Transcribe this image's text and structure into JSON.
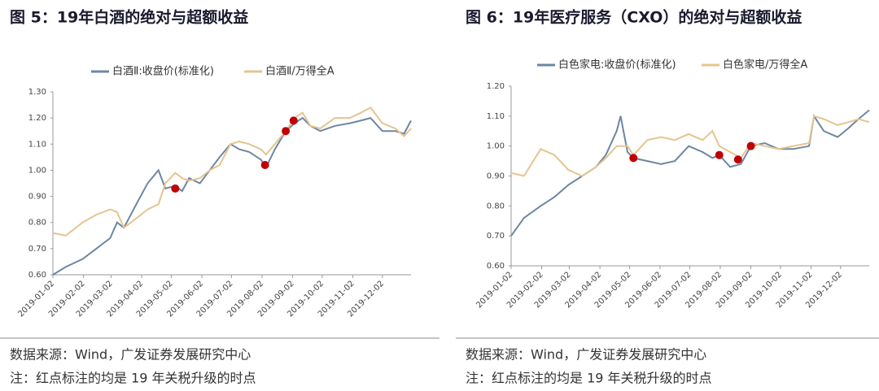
{
  "chart_data": [
    {
      "type": "line",
      "title": "图  5：19年白酒的绝对与超额收益",
      "x": [
        "2019-01-02",
        "2019-01-15",
        "2019-02-01",
        "2019-02-15",
        "2019-03-01",
        "2019-03-08",
        "2019-03-15",
        "2019-03-29",
        "2019-04-08",
        "2019-04-19",
        "2019-04-26",
        "2019-05-06",
        "2019-05-13",
        "2019-05-20",
        "2019-05-31",
        "2019-06-10",
        "2019-06-20",
        "2019-07-01",
        "2019-07-10",
        "2019-07-20",
        "2019-08-01",
        "2019-08-06",
        "2019-08-15",
        "2019-08-26",
        "2019-09-04",
        "2019-09-12",
        "2019-09-20",
        "2019-09-30",
        "2019-10-15",
        "2019-10-30",
        "2019-11-10",
        "2019-11-20",
        "2019-12-02",
        "2019-12-15",
        "2019-12-24",
        "2019-12-31"
      ],
      "series": [
        {
          "name": "白酒Ⅱ:收盘价(标准化)",
          "color": "#6d87a3",
          "values": [
            0.6,
            0.63,
            0.66,
            0.7,
            0.74,
            0.8,
            0.78,
            0.88,
            0.95,
            1.0,
            0.93,
            0.94,
            0.92,
            0.97,
            0.95,
            1.0,
            1.05,
            1.1,
            1.08,
            1.07,
            1.04,
            1.01,
            1.08,
            1.15,
            1.18,
            1.2,
            1.17,
            1.15,
            1.17,
            1.18,
            1.19,
            1.2,
            1.15,
            1.15,
            1.14,
            1.19
          ]
        },
        {
          "name": "白酒Ⅱ/万得全A",
          "color": "#e6c48f",
          "values": [
            0.76,
            0.75,
            0.8,
            0.83,
            0.85,
            0.84,
            0.78,
            0.82,
            0.85,
            0.87,
            0.95,
            0.99,
            0.97,
            0.96,
            0.97,
            1.0,
            1.02,
            1.1,
            1.11,
            1.1,
            1.08,
            1.06,
            1.1,
            1.15,
            1.2,
            1.22,
            1.17,
            1.16,
            1.2,
            1.2,
            1.22,
            1.24,
            1.18,
            1.16,
            1.13,
            1.16
          ]
        }
      ],
      "highlights": {
        "color": "#c00000",
        "x": [
          "2019-05-06",
          "2019-08-05",
          "2019-08-26",
          "2019-09-03"
        ],
        "values": [
          0.93,
          1.02,
          1.15,
          1.19
        ]
      },
      "xlim": [
        "2019-01-02",
        "2019-12-31"
      ],
      "xticks": [
        "2019-01-02",
        "2019-02-02",
        "2019-03-02",
        "2019-04-02",
        "2019-05-02",
        "2019-06-02",
        "2019-07-02",
        "2019-08-02",
        "2019-09-02",
        "2019-10-02",
        "2019-11-02",
        "2019-12-02"
      ],
      "ylim": [
        0.6,
        1.3
      ],
      "yticks": [
        {
          "value": 0.6,
          "label": "0.60"
        },
        {
          "value": 0.7,
          "label": "0.70"
        },
        {
          "value": 0.8,
          "label": "0.80"
        },
        {
          "value": 0.9,
          "label": "0.90"
        },
        {
          "value": 1.0,
          "label": "1.00"
        },
        {
          "value": 1.1,
          "label": "1.10"
        },
        {
          "value": 1.2,
          "label": "1.20"
        },
        {
          "value": 1.3,
          "label": "1.30"
        }
      ],
      "source": "数据来源：Wind，广发证券发展研究中心",
      "note": "注：红点标注的均是 19 年关税升级的时点"
    },
    {
      "type": "line",
      "title": "图  6：19年医疗服务（CXO）的绝对与超额收益",
      "x": [
        "2019-01-02",
        "2019-01-15",
        "2019-02-01",
        "2019-02-15",
        "2019-03-01",
        "2019-03-15",
        "2019-03-29",
        "2019-04-08",
        "2019-04-19",
        "2019-04-23",
        "2019-04-30",
        "2019-05-06",
        "2019-05-20",
        "2019-06-03",
        "2019-06-17",
        "2019-07-01",
        "2019-07-15",
        "2019-07-25",
        "2019-08-01",
        "2019-08-12",
        "2019-08-23",
        "2019-09-02",
        "2019-09-16",
        "2019-09-30",
        "2019-10-15",
        "2019-10-31",
        "2019-11-05",
        "2019-11-15",
        "2019-11-29",
        "2019-12-10",
        "2019-12-20",
        "2019-12-31"
      ],
      "series": [
        {
          "name": "白色家电:收盘价(标准化)",
          "color": "#6d87a3",
          "values": [
            0.7,
            0.76,
            0.8,
            0.83,
            0.87,
            0.9,
            0.93,
            0.97,
            1.05,
            1.1,
            0.98,
            0.96,
            0.95,
            0.94,
            0.95,
            1.0,
            0.98,
            0.96,
            0.97,
            0.93,
            0.94,
            1.0,
            1.01,
            0.99,
            0.99,
            1.0,
            1.1,
            1.05,
            1.03,
            1.06,
            1.09,
            1.12
          ]
        },
        {
          "name": "白色家电/万得全A",
          "color": "#e6c48f",
          "values": [
            0.91,
            0.9,
            0.99,
            0.97,
            0.92,
            0.9,
            0.93,
            0.96,
            1.0,
            1.0,
            1.0,
            0.97,
            1.02,
            1.03,
            1.02,
            1.04,
            1.02,
            1.05,
            1.0,
            0.98,
            0.96,
            1.01,
            1.0,
            0.99,
            1.0,
            1.01,
            1.1,
            1.09,
            1.07,
            1.08,
            1.09,
            1.08
          ]
        }
      ],
      "highlights": {
        "color": "#c00000",
        "x": [
          "2019-05-06",
          "2019-08-01",
          "2019-08-20",
          "2019-09-02"
        ],
        "values": [
          0.96,
          0.97,
          0.955,
          1.0
        ]
      },
      "xlim": [
        "2019-01-02",
        "2019-12-31"
      ],
      "xticks": [
        "2019-01-02",
        "2019-02-02",
        "2019-03-02",
        "2019-04-02",
        "2019-05-02",
        "2019-06-02",
        "2019-07-02",
        "2019-08-02",
        "2019-09-02",
        "2019-10-02",
        "2019-11-02",
        "2019-12-02"
      ],
      "ylim": [
        0.6,
        1.2
      ],
      "yticks": [
        {
          "value": 0.6,
          "label": "0.60"
        },
        {
          "value": 0.7,
          "label": "0.70"
        },
        {
          "value": 0.8,
          "label": "0.80"
        },
        {
          "value": 0.9,
          "label": "0.90"
        },
        {
          "value": 1.0,
          "label": "1.00"
        },
        {
          "value": 1.1,
          "label": "1.10"
        },
        {
          "value": 1.2,
          "label": "1.20"
        }
      ],
      "source": "数据来源：Wind，广发证券发展研究中心",
      "note": "注：红点标注的均是 19 年关税升级的时点"
    }
  ]
}
